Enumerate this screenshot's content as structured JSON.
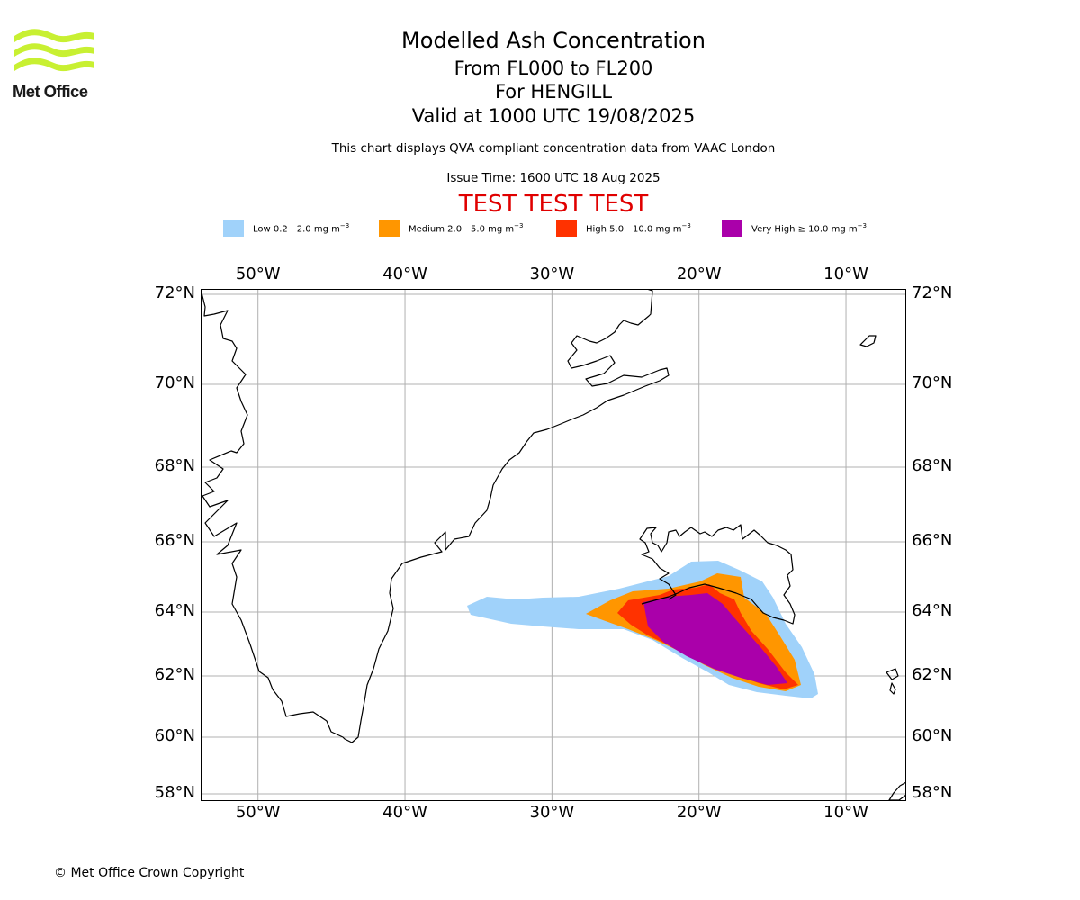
{
  "header": {
    "title": "Modelled Ash Concentration",
    "subtitle_levels": "From FL000 to FL200",
    "subtitle_volcano": "For HENGILL",
    "valid_time": "Valid at 1000 UTC 19/08/2025",
    "description": "This chart displays QVA compliant concentration data from VAAC London",
    "issue_time": "Issue Time: 1600 UTC 18 Aug 2025",
    "test_banner": "TEST TEST TEST"
  },
  "logo": {
    "text": "Met Office",
    "color": "#c8f032"
  },
  "legend": [
    {
      "label": "Low 0.2 - 2.0 mg m",
      "unit_exp": "−3",
      "color": "#a0d2fa"
    },
    {
      "label": "Medium 2.0 - 5.0 mg m",
      "unit_exp": "−3",
      "color": "#ff9600"
    },
    {
      "label": "High 5.0 - 10.0 mg m",
      "unit_exp": "−3",
      "color": "#ff3200"
    },
    {
      "label": "Very High ≥ 10.0 mg m",
      "unit_exp": "−3",
      "color": "#aa00aa"
    }
  ],
  "map": {
    "lon_range": [
      -53.9,
      -5.9
    ],
    "lat_range": [
      57.8,
      72.2
    ],
    "lon_ticks": [
      {
        "value": -50,
        "label": "50°W"
      },
      {
        "value": -40,
        "label": "40°W"
      },
      {
        "value": -30,
        "label": "30°W"
      },
      {
        "value": -20,
        "label": "20°W"
      },
      {
        "value": -10,
        "label": "10°W"
      }
    ],
    "lat_ticks": [
      {
        "value": 72,
        "label": "72°N"
      },
      {
        "value": 70,
        "label": "70°N"
      },
      {
        "value": 68,
        "label": "68°N"
      },
      {
        "value": 66,
        "label": "66°N"
      },
      {
        "value": 64,
        "label": "64°N"
      },
      {
        "value": 62,
        "label": "62°N"
      },
      {
        "value": 60,
        "label": "60°N"
      },
      {
        "value": 58,
        "label": "58°N"
      }
    ],
    "grid": true,
    "grid_color": "#b0b0b0",
    "ash_colors": {
      "low": "#a0d2fa",
      "medium": "#ff9600",
      "high": "#ff3200",
      "very_high": "#aa00aa"
    }
  },
  "footer": {
    "copyright": "© Met Office Crown Copyright"
  }
}
